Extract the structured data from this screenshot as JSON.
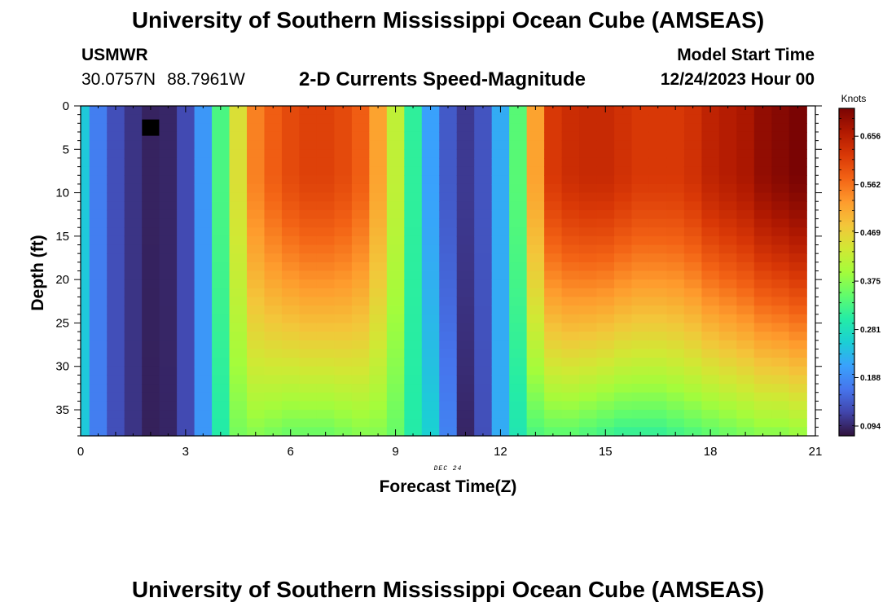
{
  "page": {
    "title": "University of Southern Mississippi Ocean Cube (AMSEAS)",
    "bottom_title": "University of Southern Mississippi Ocean Cube (AMSEAS)",
    "station": {
      "id": "USMWR",
      "lat": "30.0757N",
      "lon": "88.7961W"
    },
    "subtitle": "2-D Currents Speed-Magnitude",
    "model_start": {
      "label": "Model Start Time",
      "value": "12/24/2023 Hour 00"
    }
  },
  "chart_data": {
    "type": "heatmap",
    "title": "2-D Currents Speed-Magnitude",
    "xlabel": "Forecast Time(Z)",
    "ylabel": "Depth (ft)",
    "date_label": "DEC 24",
    "colorbar_label": "Knots",
    "xlim": [
      0,
      21
    ],
    "ylim": [
      0,
      38
    ],
    "x_ticks": [
      "0",
      "3",
      "6",
      "9",
      "12",
      "15",
      "18",
      "21"
    ],
    "y_ticks": [
      "0",
      "5",
      "10",
      "15",
      "20",
      "25",
      "30",
      "35"
    ],
    "colorbar_ticks": [
      "0.094",
      "0.188",
      "0.281",
      "0.375",
      "0.469",
      "0.562",
      "0.656"
    ],
    "colorbar_range": [
      0.075,
      0.71
    ],
    "colorscale": [
      "#30123b",
      "#4145ab",
      "#4675ed",
      "#39a2fc",
      "#1bcfd4",
      "#24eca6",
      "#61fc6c",
      "#a4fc3b",
      "#d1e834",
      "#f3c63a",
      "#fe9b2d",
      "#f36315",
      "#d93806",
      "#b11901",
      "#7a0403"
    ],
    "time_step_hours": 0.5,
    "columns": [
      {
        "surface": 0.25,
        "bottom": 0.25
      },
      {
        "surface": 0.175,
        "bottom": 0.175
      },
      {
        "surface": 0.13,
        "bottom": 0.13
      },
      {
        "surface": 0.105,
        "bottom": 0.105
      },
      {
        "surface": 0.09,
        "bottom": 0.088
      },
      {
        "surface": 0.093,
        "bottom": 0.092
      },
      {
        "surface": 0.125,
        "bottom": 0.125
      },
      {
        "surface": 0.2,
        "bottom": 0.2
      },
      {
        "surface": 0.33,
        "bottom": 0.3
      },
      {
        "surface": 0.45,
        "bottom": 0.36
      },
      {
        "surface": 0.55,
        "bottom": 0.37
      },
      {
        "surface": 0.58,
        "bottom": 0.36
      },
      {
        "surface": 0.6,
        "bottom": 0.35
      },
      {
        "surface": 0.61,
        "bottom": 0.35
      },
      {
        "surface": 0.61,
        "bottom": 0.35
      },
      {
        "surface": 0.6,
        "bottom": 0.36
      },
      {
        "surface": 0.58,
        "bottom": 0.37
      },
      {
        "surface": 0.52,
        "bottom": 0.37
      },
      {
        "surface": 0.42,
        "bottom": 0.35
      },
      {
        "surface": 0.31,
        "bottom": 0.3
      },
      {
        "surface": 0.21,
        "bottom": 0.26
      },
      {
        "surface": 0.14,
        "bottom": 0.18
      },
      {
        "surface": 0.11,
        "bottom": 0.092
      },
      {
        "surface": 0.135,
        "bottom": 0.13
      },
      {
        "surface": 0.22,
        "bottom": 0.22
      },
      {
        "surface": 0.34,
        "bottom": 0.29
      },
      {
        "surface": 0.52,
        "bottom": 0.33
      },
      {
        "surface": 0.62,
        "bottom": 0.34
      },
      {
        "surface": 0.635,
        "bottom": 0.34
      },
      {
        "surface": 0.64,
        "bottom": 0.33
      },
      {
        "surface": 0.64,
        "bottom": 0.32
      },
      {
        "surface": 0.63,
        "bottom": 0.31
      },
      {
        "surface": 0.62,
        "bottom": 0.31
      },
      {
        "surface": 0.62,
        "bottom": 0.31
      },
      {
        "surface": 0.62,
        "bottom": 0.32
      },
      {
        "surface": 0.63,
        "bottom": 0.33
      },
      {
        "surface": 0.65,
        "bottom": 0.34
      },
      {
        "surface": 0.66,
        "bottom": 0.35
      },
      {
        "surface": 0.67,
        "bottom": 0.36
      },
      {
        "surface": 0.69,
        "bottom": 0.37
      },
      {
        "surface": 0.7,
        "bottom": 0.37
      },
      {
        "surface": 0.71,
        "bottom": 0.38
      }
    ],
    "missing_cells": [
      {
        "t": 2.0,
        "depth": 2.5
      }
    ]
  }
}
